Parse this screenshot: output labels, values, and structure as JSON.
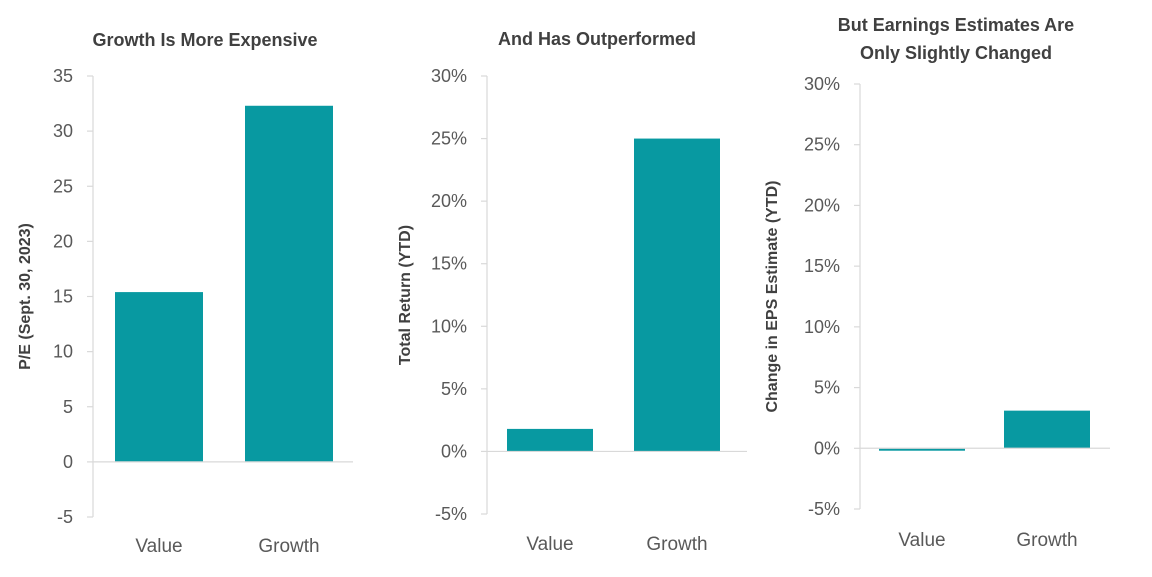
{
  "colors": {
    "bar": "#0899a1",
    "axis": "#d9d9d9",
    "text": "#595959",
    "title": "#404040"
  },
  "chart_data": [
    {
      "type": "bar",
      "title_lines": [
        "Growth Is More Expensive"
      ],
      "ylabel": "P/E (Sept. 30, 2023)",
      "categories": [
        "Value",
        "Growth"
      ],
      "values": [
        15.4,
        32.3
      ],
      "ylim": [
        -5,
        35
      ],
      "yticks": [
        -5,
        0,
        5,
        10,
        15,
        20,
        25,
        30,
        35
      ],
      "ytick_labels": [
        "-5",
        "0",
        "5",
        "10",
        "15",
        "20",
        "25",
        "30",
        "35"
      ],
      "grid": false
    },
    {
      "type": "bar",
      "title_lines": [
        "And Has Outperformed"
      ],
      "ylabel": "Total Return (YTD)",
      "categories": [
        "Value",
        "Growth"
      ],
      "values": [
        1.8,
        25.0
      ],
      "ylim": [
        -5,
        30
      ],
      "yticks": [
        -5,
        0,
        5,
        10,
        15,
        20,
        25,
        30
      ],
      "ytick_labels": [
        "-5%",
        "0%",
        "5%",
        "10%",
        "15%",
        "20%",
        "25%",
        "30%"
      ],
      "grid": false
    },
    {
      "type": "bar",
      "title_lines": [
        "But Earnings Estimates Are",
        "Only Slightly Changed"
      ],
      "ylabel": "Change in EPS Estimate (YTD)",
      "categories": [
        "Value",
        "Growth"
      ],
      "values": [
        -0.2,
        3.1
      ],
      "ylim": [
        -5,
        30
      ],
      "yticks": [
        -5,
        0,
        5,
        10,
        15,
        20,
        25,
        30
      ],
      "ytick_labels": [
        "-5%",
        "0%",
        "5%",
        "10%",
        "15%",
        "20%",
        "25%",
        "30%"
      ],
      "grid": false
    }
  ]
}
